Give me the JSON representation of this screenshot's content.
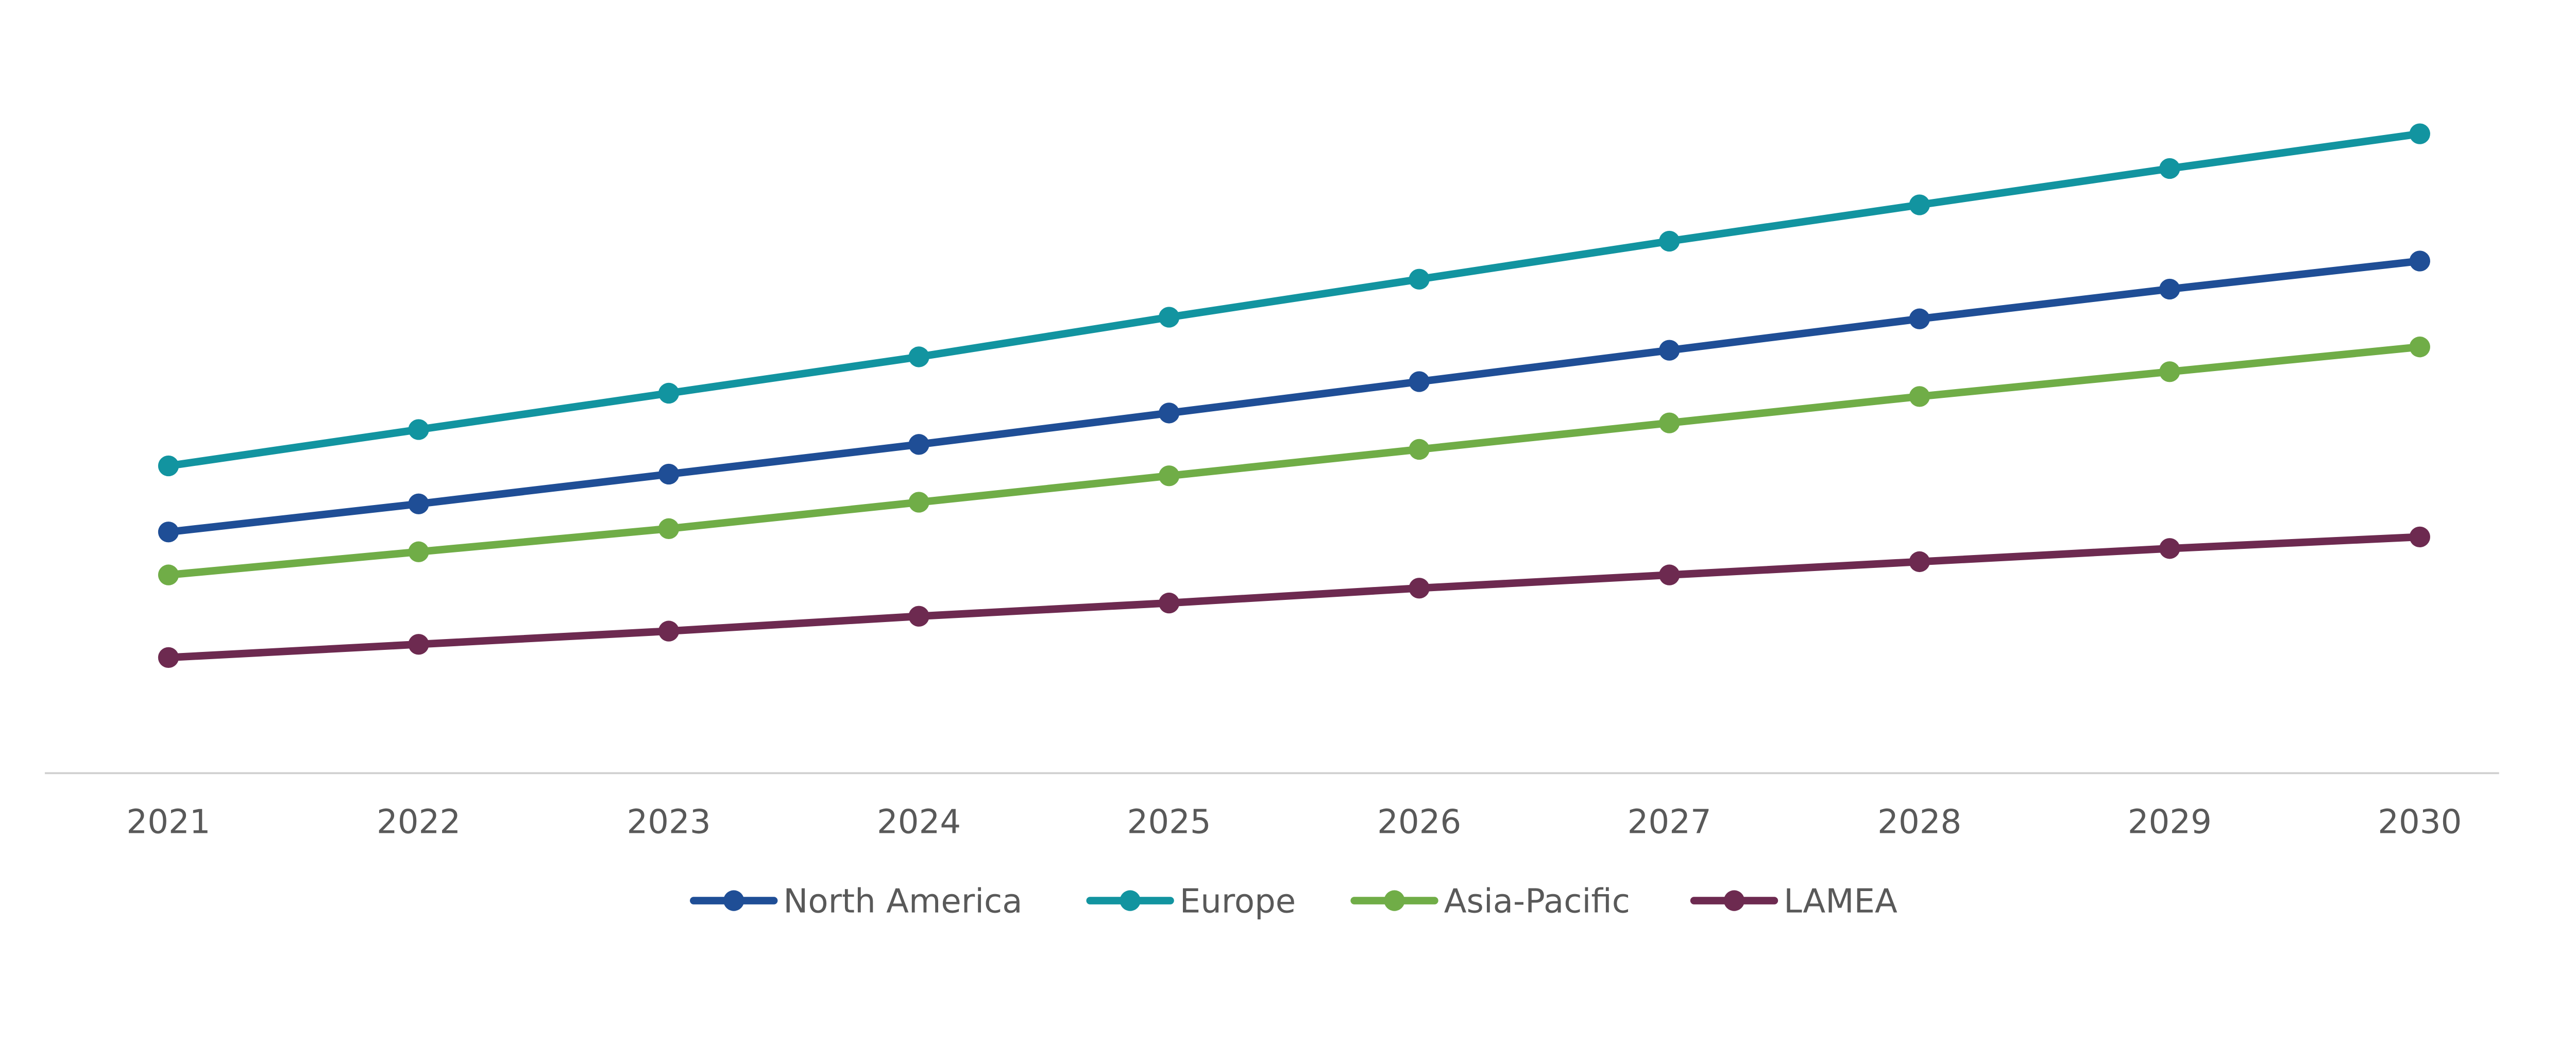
{
  "chart_data": {
    "type": "line",
    "title": "",
    "xlabel": "",
    "ylabel": "",
    "categories": [
      "2021",
      "2022",
      "2023",
      "2024",
      "2025",
      "2026",
      "2027",
      "2028",
      "2029",
      "2030"
    ],
    "ylim": [
      0,
      430
    ],
    "y_axis_labels_shown": false,
    "grid": false,
    "legend_position": "bottom",
    "series": [
      {
        "name": "North America",
        "color": "#1F4E96",
        "values": [
          146,
          163,
          181,
          199,
          218,
          237,
          256,
          275,
          293,
          310
        ]
      },
      {
        "name": "Europe",
        "color": "#1294A0",
        "values": [
          186,
          208,
          230,
          252,
          276,
          299,
          322,
          344,
          366,
          387
        ]
      },
      {
        "name": "Asia-Pacific",
        "color": "#70AD47",
        "values": [
          120,
          134,
          148,
          164,
          180,
          196,
          212,
          228,
          243,
          258
        ]
      },
      {
        "name": "LAMEA",
        "color": "#6D2A50",
        "values": [
          70,
          78,
          86,
          95,
          103,
          112,
          120,
          128,
          136,
          143
        ]
      }
    ]
  }
}
